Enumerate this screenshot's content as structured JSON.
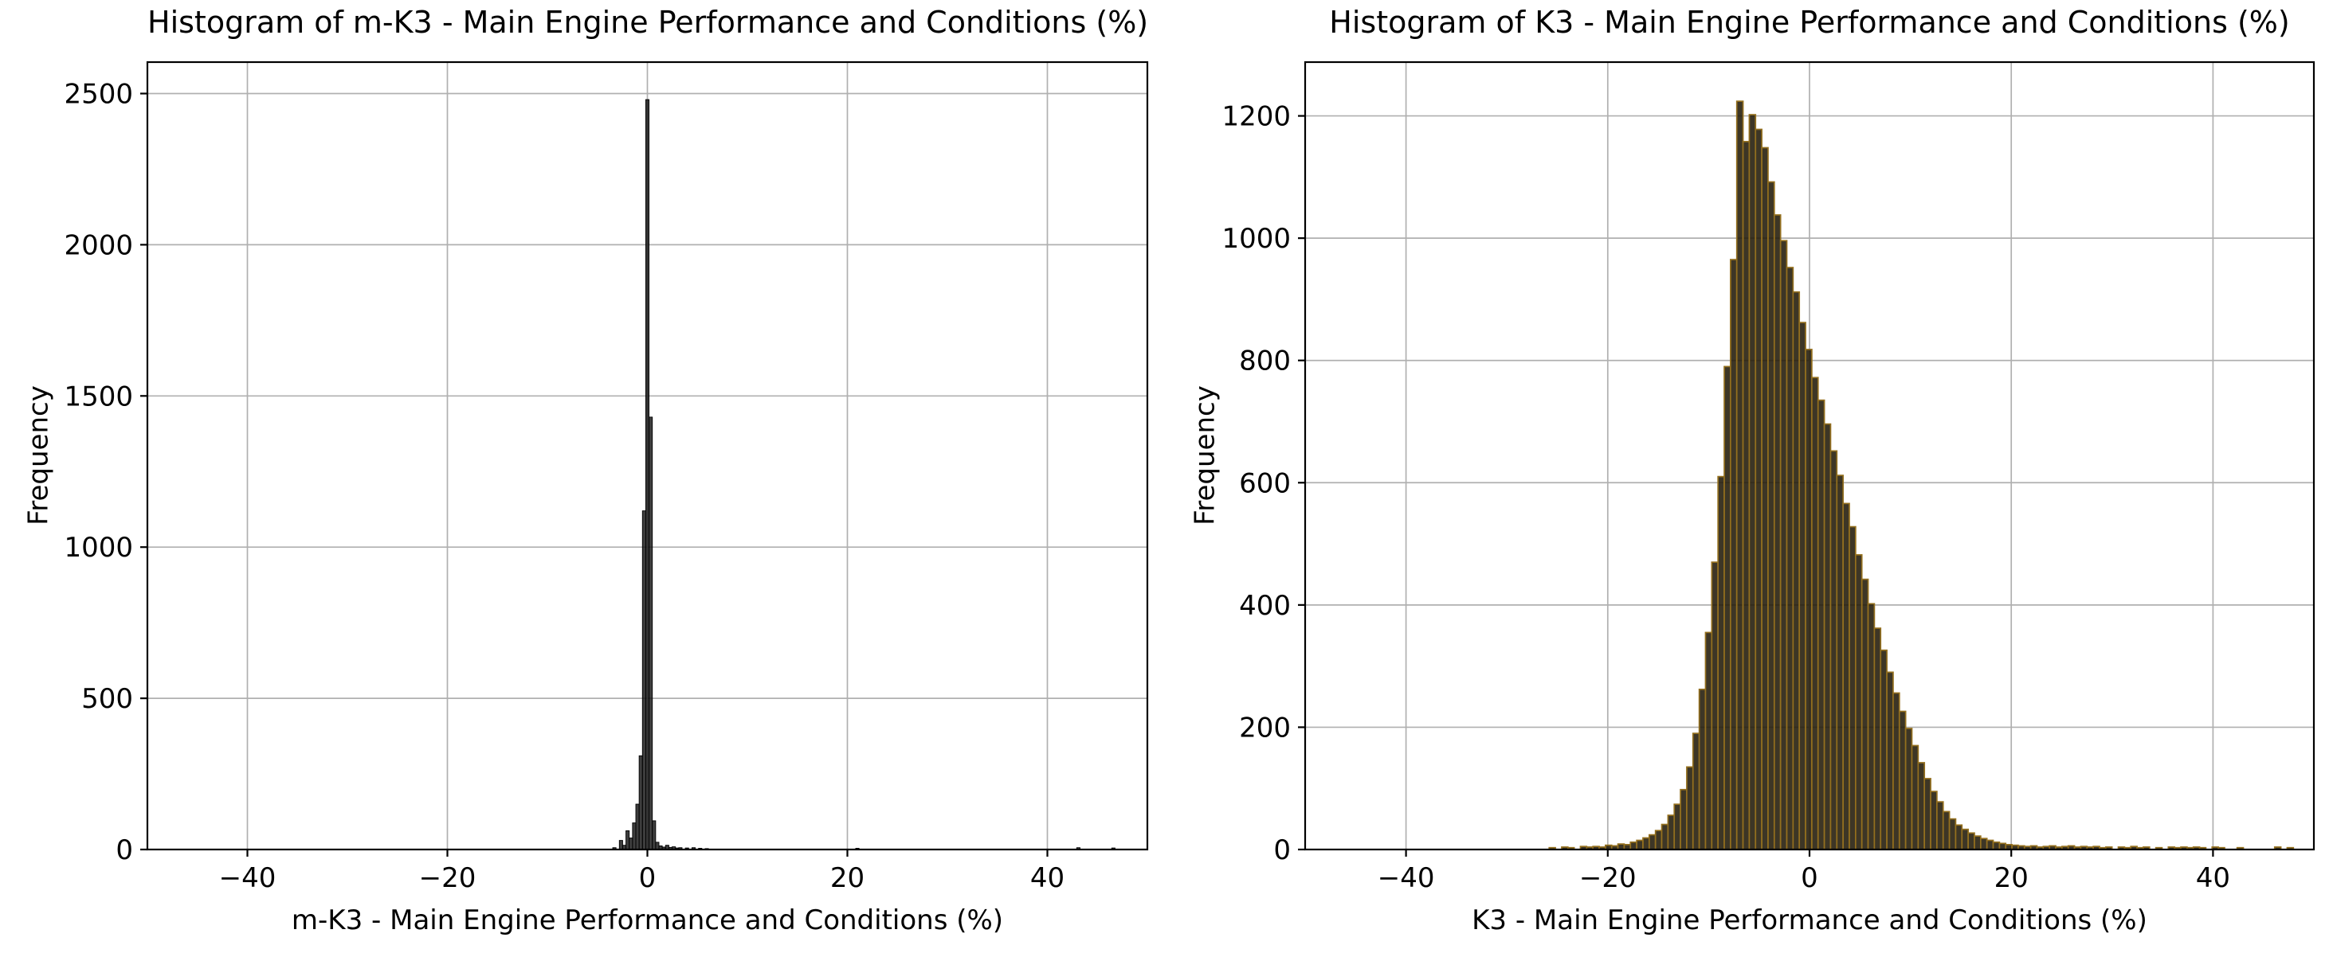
{
  "colors": {
    "background": "#ffffff",
    "grid": "#b0b0b0",
    "axis": "#000000",
    "text": "#000000"
  },
  "chart_data": [
    {
      "type": "bar",
      "subtype": "histogram",
      "title": "Histogram of m-K3 - Main Engine Performance and Conditions (%)",
      "xlabel": "m-K3 - Main Engine Performance and Conditions (%)",
      "ylabel": "Frequency",
      "xlim": [
        -50,
        50
      ],
      "ylim": [
        0,
        2604
      ],
      "xticks": [
        -40,
        -20,
        0,
        20,
        40
      ],
      "xtick_labels": [
        "−40",
        "−20",
        "0",
        "20",
        "40"
      ],
      "yticks": [
        0,
        500,
        1000,
        1500,
        2000,
        2500
      ],
      "ytick_labels": [
        "0",
        "500",
        "1000",
        "1500",
        "2000",
        "2500"
      ],
      "grid": true,
      "legend": false,
      "bar_fill": "#141414",
      "bar_edge": "#000000",
      "bar_opacity": 0.82,
      "bin_width": 0.33,
      "bars": [
        [
          -3.3,
          6
        ],
        [
          -2.64,
          30
        ],
        [
          -2.31,
          14
        ],
        [
          -1.98,
          62
        ],
        [
          -1.65,
          38
        ],
        [
          -1.32,
          88
        ],
        [
          -0.99,
          150
        ],
        [
          -0.66,
          310
        ],
        [
          -0.33,
          1120
        ],
        [
          0.0,
          2480
        ],
        [
          0.33,
          1430
        ],
        [
          0.66,
          95
        ],
        [
          0.99,
          24
        ],
        [
          1.32,
          12
        ],
        [
          1.65,
          8
        ],
        [
          1.98,
          14
        ],
        [
          2.31,
          7
        ],
        [
          2.64,
          9
        ],
        [
          2.97,
          5
        ],
        [
          3.3,
          6
        ],
        [
          3.96,
          5
        ],
        [
          4.62,
          6
        ],
        [
          5.28,
          4
        ],
        [
          5.94,
          3
        ],
        [
          21.0,
          4
        ],
        [
          43.1,
          6
        ],
        [
          46.6,
          5
        ]
      ]
    },
    {
      "type": "bar",
      "subtype": "histogram",
      "title": "Histogram of K3 - Main Engine Performance and Conditions (%)",
      "xlabel": "K3 - Main Engine Performance and Conditions (%)",
      "ylabel": "Frequency",
      "xlim": [
        -50,
        50
      ],
      "ylim": [
        0,
        1288
      ],
      "xticks": [
        -40,
        -20,
        0,
        20,
        40
      ],
      "xtick_labels": [
        "−40",
        "−20",
        "0",
        "20",
        "40"
      ],
      "yticks": [
        0,
        200,
        400,
        600,
        800,
        1000,
        1200
      ],
      "ytick_labels": [
        "0",
        "200",
        "400",
        "600",
        "800",
        "1000",
        "1200"
      ],
      "grid": true,
      "legend": false,
      "bar_fill": "#221a08",
      "bar_edge": "#94701f",
      "bar_opacity": 0.88,
      "bin_width": 0.62,
      "bars": [
        [
          -25.5,
          3
        ],
        [
          -24.26,
          4
        ],
        [
          -23.64,
          3
        ],
        [
          -22.4,
          5
        ],
        [
          -21.78,
          4
        ],
        [
          -21.16,
          5
        ],
        [
          -20.54,
          4
        ],
        [
          -19.92,
          7
        ],
        [
          -19.3,
          6
        ],
        [
          -18.68,
          9
        ],
        [
          -18.06,
          8
        ],
        [
          -17.44,
          12
        ],
        [
          -16.82,
          15
        ],
        [
          -16.2,
          19
        ],
        [
          -15.58,
          24
        ],
        [
          -14.96,
          31
        ],
        [
          -14.34,
          41
        ],
        [
          -13.72,
          56
        ],
        [
          -13.1,
          74
        ],
        [
          -12.48,
          98
        ],
        [
          -11.86,
          135
        ],
        [
          -11.24,
          190
        ],
        [
          -10.62,
          262
        ],
        [
          -10.0,
          355
        ],
        [
          -9.38,
          470
        ],
        [
          -8.76,
          610
        ],
        [
          -8.14,
          790
        ],
        [
          -7.52,
          965
        ],
        [
          -6.9,
          1224
        ],
        [
          -6.28,
          1158
        ],
        [
          -5.66,
          1202
        ],
        [
          -5.04,
          1178
        ],
        [
          -4.42,
          1148
        ],
        [
          -3.8,
          1092
        ],
        [
          -3.18,
          1038
        ],
        [
          -2.56,
          996
        ],
        [
          -1.94,
          952
        ],
        [
          -1.32,
          912
        ],
        [
          -0.7,
          862
        ],
        [
          -0.08,
          818
        ],
        [
          0.54,
          772
        ],
        [
          1.16,
          735
        ],
        [
          1.78,
          696
        ],
        [
          2.4,
          652
        ],
        [
          3.02,
          612
        ],
        [
          3.64,
          566
        ],
        [
          4.26,
          528
        ],
        [
          4.88,
          482
        ],
        [
          5.5,
          442
        ],
        [
          6.12,
          402
        ],
        [
          6.74,
          362
        ],
        [
          7.36,
          326
        ],
        [
          7.98,
          290
        ],
        [
          8.6,
          256
        ],
        [
          9.22,
          226
        ],
        [
          9.84,
          198
        ],
        [
          10.46,
          170
        ],
        [
          11.08,
          142
        ],
        [
          11.7,
          116
        ],
        [
          12.32,
          95
        ],
        [
          12.94,
          78
        ],
        [
          13.56,
          62
        ],
        [
          14.18,
          50
        ],
        [
          14.8,
          40
        ],
        [
          15.42,
          33
        ],
        [
          16.04,
          27
        ],
        [
          16.66,
          22
        ],
        [
          17.28,
          18
        ],
        [
          17.9,
          15
        ],
        [
          18.52,
          12
        ],
        [
          19.14,
          10
        ],
        [
          19.76,
          8
        ],
        [
          20.38,
          7
        ],
        [
          21.0,
          6
        ],
        [
          21.62,
          5
        ],
        [
          22.24,
          6
        ],
        [
          22.86,
          4
        ],
        [
          23.48,
          5
        ],
        [
          24.1,
          6
        ],
        [
          24.72,
          4
        ],
        [
          25.34,
          5
        ],
        [
          25.96,
          6
        ],
        [
          26.58,
          4
        ],
        [
          27.2,
          5
        ],
        [
          27.82,
          4
        ],
        [
          28.44,
          5
        ],
        [
          29.06,
          3
        ],
        [
          29.68,
          4
        ],
        [
          30.92,
          4
        ],
        [
          31.54,
          3
        ],
        [
          32.16,
          5
        ],
        [
          32.78,
          3
        ],
        [
          33.4,
          4
        ],
        [
          34.64,
          3
        ],
        [
          35.88,
          4
        ],
        [
          36.5,
          3
        ],
        [
          37.12,
          4
        ],
        [
          37.74,
          3
        ],
        [
          38.36,
          4
        ],
        [
          38.98,
          3
        ],
        [
          40.22,
          4
        ],
        [
          40.84,
          3
        ],
        [
          42.7,
          3
        ],
        [
          46.42,
          4
        ],
        [
          47.66,
          3
        ]
      ]
    }
  ]
}
